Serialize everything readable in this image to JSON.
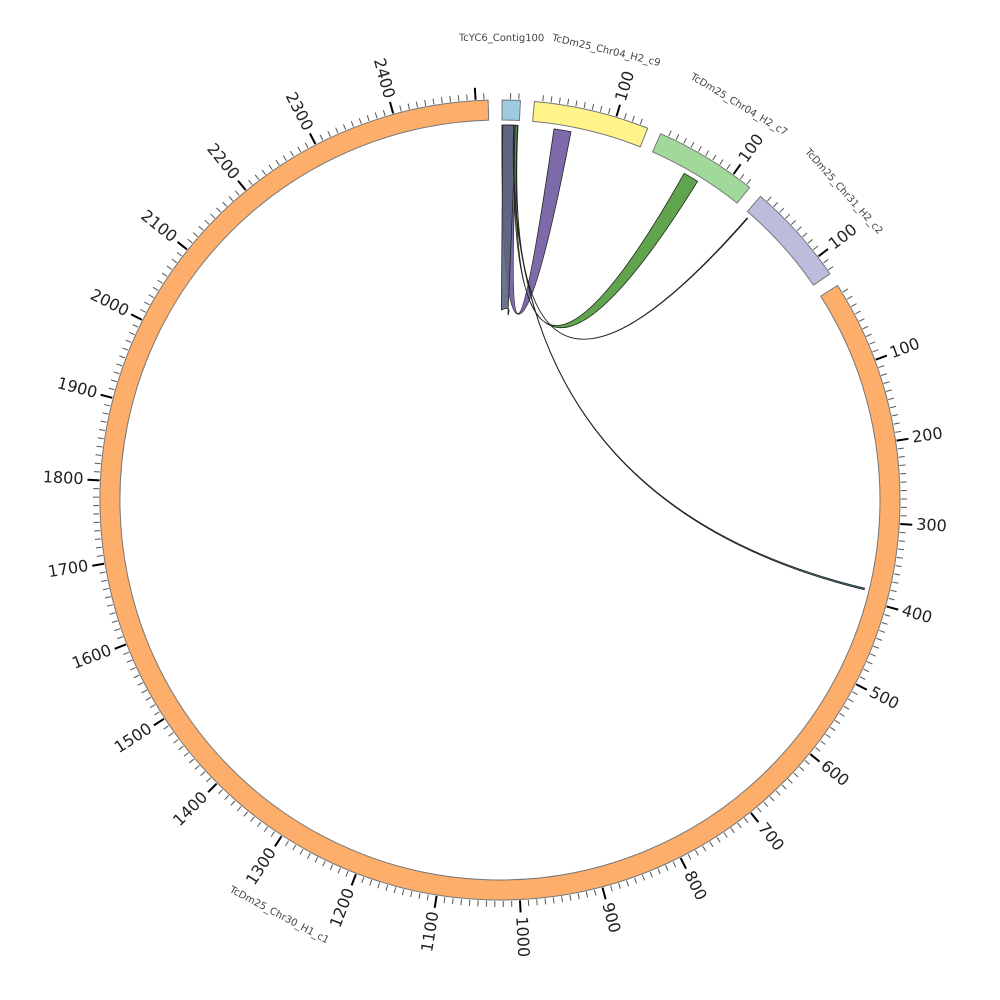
{
  "chart_data": {
    "type": "chord",
    "segments": [
      {
        "name": "TcYC6_Contig100",
        "length": 22,
        "color": "#9ecae1",
        "tick_labels": []
      },
      {
        "name": "TcDm25_Chr04_H2_c9",
        "length": 140,
        "color": "#fff38a",
        "tick_labels": [
          "100"
        ]
      },
      {
        "name": "TcDm25_Chr04_H2_c7",
        "length": 125,
        "color": "#a1d99b",
        "tick_labels": [
          "100"
        ]
      },
      {
        "name": "TcDm25_Chr31_H2_c2",
        "length": 125,
        "color": "#bcbddc",
        "tick_labels": [
          "100"
        ]
      },
      {
        "name": "TcDm25_Chr30_H1_c1",
        "length": 2515,
        "color": "#fdae6b",
        "tick_labels": [
          "100",
          "200",
          "300",
          "400",
          "500",
          "600",
          "700",
          "800",
          "900",
          "1000",
          "1100",
          "1200",
          "1300",
          "1400",
          "1500",
          "1600",
          "1700",
          "1800",
          "1900",
          "2000",
          "2100",
          "2200",
          "2300",
          "2400"
        ]
      }
    ],
    "links": [
      {
        "source": "TcYC6_Contig100",
        "source_range": [
          0,
          20
        ],
        "target": "TcDm25_Chr04_H2_c9",
        "target_range": [
          28,
          50
        ],
        "color": "#6f5aa0"
      },
      {
        "source": "TcYC6_Contig100",
        "source_range": [
          1,
          18
        ],
        "target": "TcYC6_Contig100",
        "target_range": [
          1,
          18
        ],
        "color": "#5c6680"
      },
      {
        "source": "TcYC6_Contig100",
        "source_range": [
          17,
          20
        ],
        "target": "TcDm25_Chr04_H2_c7",
        "target_range": [
          48,
          68
        ],
        "color": "#4f9a3a"
      },
      {
        "source": "TcYC6_Contig100",
        "source_range": [
          20,
          20.5
        ],
        "target": "TcDm25_Chr31_H2_c2",
        "target_range": [
          5,
          6
        ],
        "color": "#a0522d"
      },
      {
        "source": "TcYC6_Contig100",
        "source_range": [
          15,
          15.5
        ],
        "target": "TcDm25_Chr30_H1_c1",
        "target_range": [
          385,
          387
        ],
        "color": "#2c6a7a"
      }
    ],
    "minor_tick_interval": 10,
    "major_tick_interval": 100
  }
}
